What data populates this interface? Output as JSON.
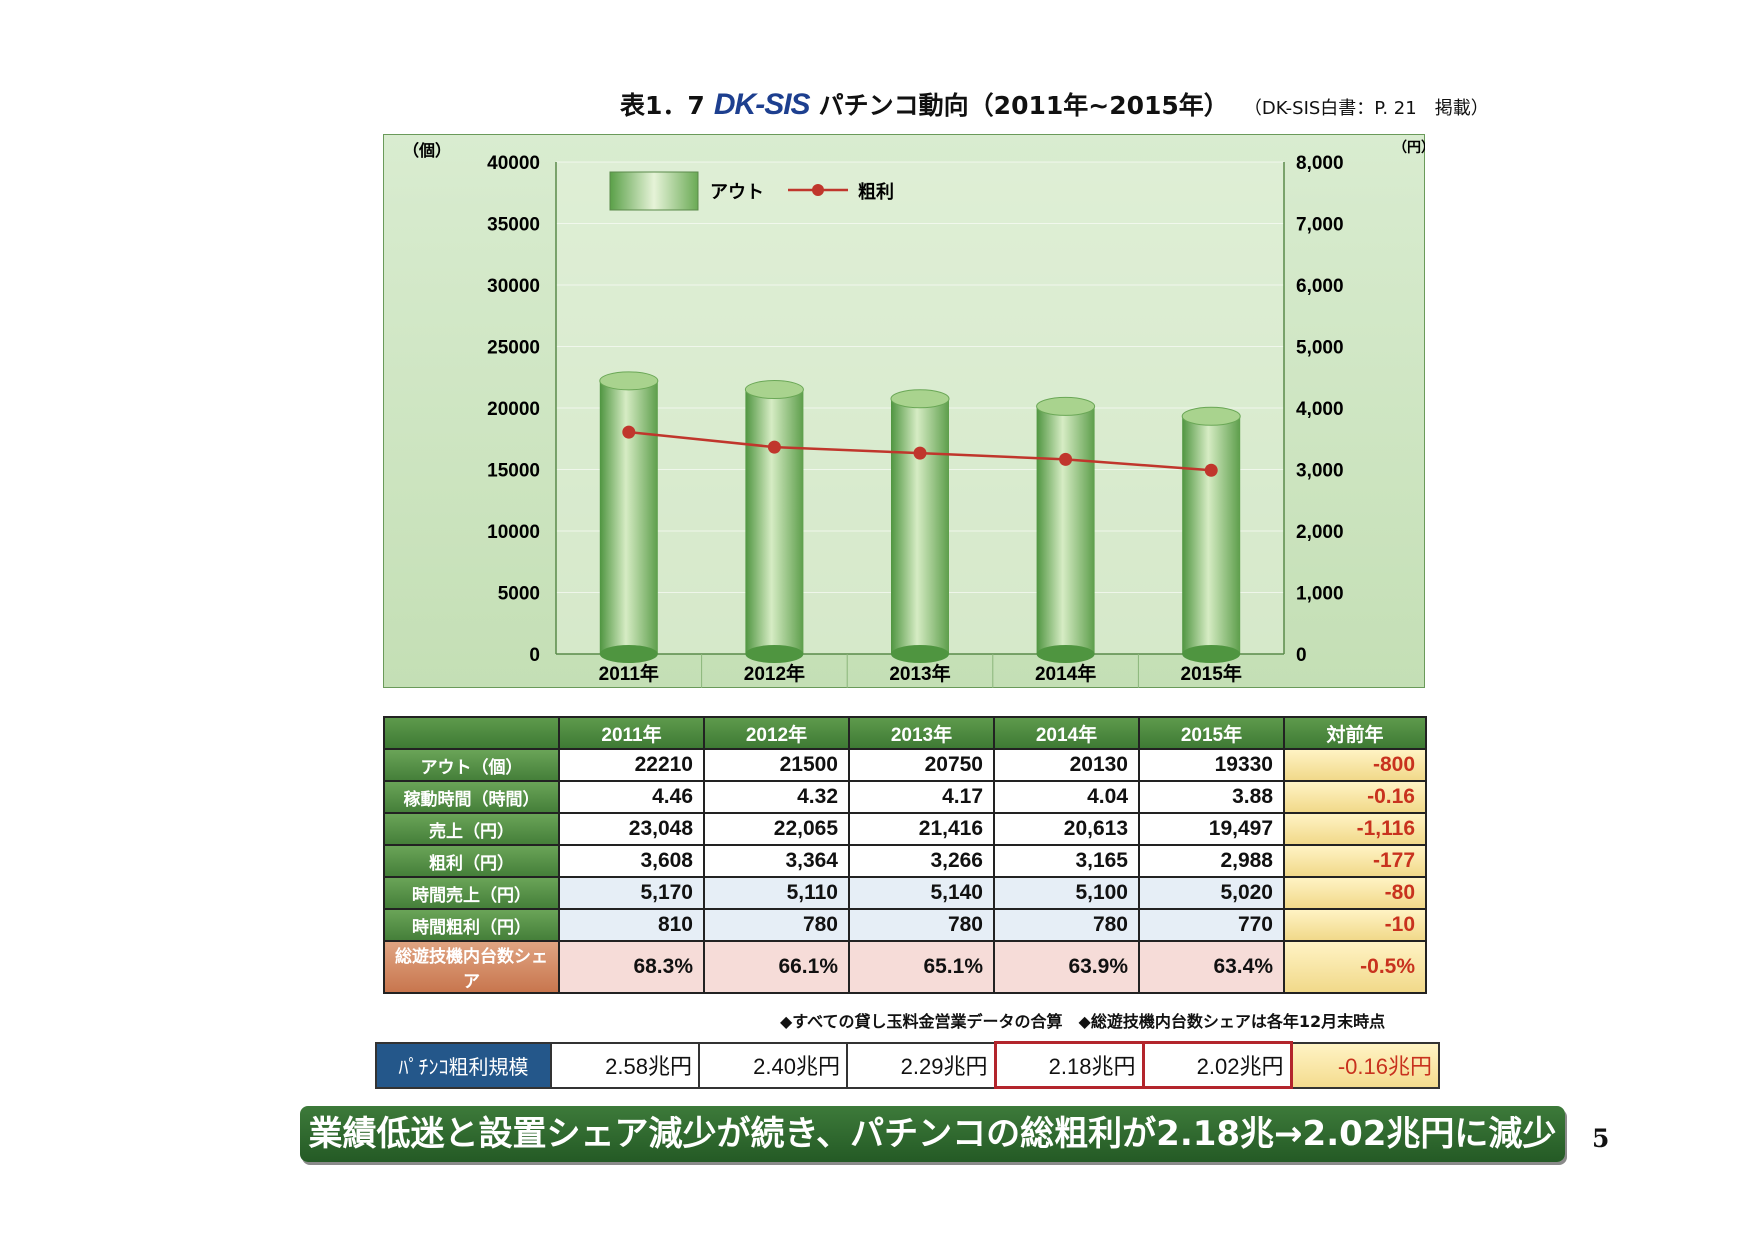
{
  "header": {
    "title_prefix": "表1．7",
    "logo_text": "DK-SIS",
    "title_main": "パチンコ動向（2011年~2015年）",
    "source": "（DK-SIS白書：P. 21　掲載）"
  },
  "chart_data": {
    "type": "bar",
    "categories": [
      "2011年",
      "2012年",
      "2013年",
      "2014年",
      "2015年"
    ],
    "series": [
      {
        "name": "アウト",
        "type": "bar",
        "axis": "left",
        "values": [
          22210,
          21500,
          20750,
          20130,
          19330
        ],
        "color": "#7fb865"
      },
      {
        "name": "粗利",
        "type": "line",
        "axis": "right",
        "values": [
          3608,
          3364,
          3266,
          3165,
          2988
        ],
        "color": "#c0362c"
      }
    ],
    "y_left": {
      "unit": "（個）",
      "min": 0,
      "max": 40000,
      "ticks": [
        "0",
        "5000",
        "10000",
        "15000",
        "20000",
        "25000",
        "30000",
        "35000",
        "40000"
      ]
    },
    "y_right": {
      "unit": "（円）",
      "min": 0,
      "max": 8000,
      "ticks": [
        "0",
        "1,000",
        "2,000",
        "3,000",
        "4,000",
        "5,000",
        "6,000",
        "7,000",
        "8,000"
      ]
    },
    "legend_position": "top-left",
    "plot_background": "#cfe6c2"
  },
  "table": {
    "headers": [
      "2011年",
      "2012年",
      "2013年",
      "2014年",
      "2015年",
      "対前年"
    ],
    "rows": [
      {
        "label": "アウト（個）",
        "values": [
          "22210",
          "21500",
          "20750",
          "20130",
          "19330"
        ],
        "yoy": "-800",
        "style": "white"
      },
      {
        "label": "稼動時間（時間）",
        "values": [
          "4.46",
          "4.32",
          "4.17",
          "4.04",
          "3.88"
        ],
        "yoy": "-0.16",
        "style": "white"
      },
      {
        "label": "売上（円）",
        "values": [
          "23,048",
          "22,065",
          "21,416",
          "20,613",
          "19,497"
        ],
        "yoy": "-1,116",
        "style": "white"
      },
      {
        "label": "粗利（円）",
        "values": [
          "3,608",
          "3,364",
          "3,266",
          "3,165",
          "2,988"
        ],
        "yoy": "-177",
        "style": "white"
      },
      {
        "label": "時間売上（円）",
        "values": [
          "5,170",
          "5,110",
          "5,140",
          "5,100",
          "5,020"
        ],
        "yoy": "-80",
        "style": "blue"
      },
      {
        "label": "時間粗利（円）",
        "values": [
          "810",
          "780",
          "780",
          "780",
          "770"
        ],
        "yoy": "-10",
        "style": "blue"
      },
      {
        "label": "総遊技機内台数シェア",
        "values": [
          "68.3%",
          "66.1%",
          "65.1%",
          "63.9%",
          "63.4%"
        ],
        "yoy": "-0.5%",
        "style": "share"
      }
    ]
  },
  "footnote": "◆すべての貸し玉料金営業データの合算　◆総遊技機内台数シェアは各年12月末時点",
  "scale": {
    "label": "ﾊﾟﾁﾝｺ粗利規模",
    "values": [
      "2.58兆円",
      "2.40兆円",
      "2.29兆円",
      "2.18兆円",
      "2.02兆円"
    ],
    "yoy": "-0.16兆円"
  },
  "banner": "業績低迷と設置シェア減少が続き、パチンコの総粗利が2.18兆→2.02兆円に減少",
  "page_number": "5"
}
